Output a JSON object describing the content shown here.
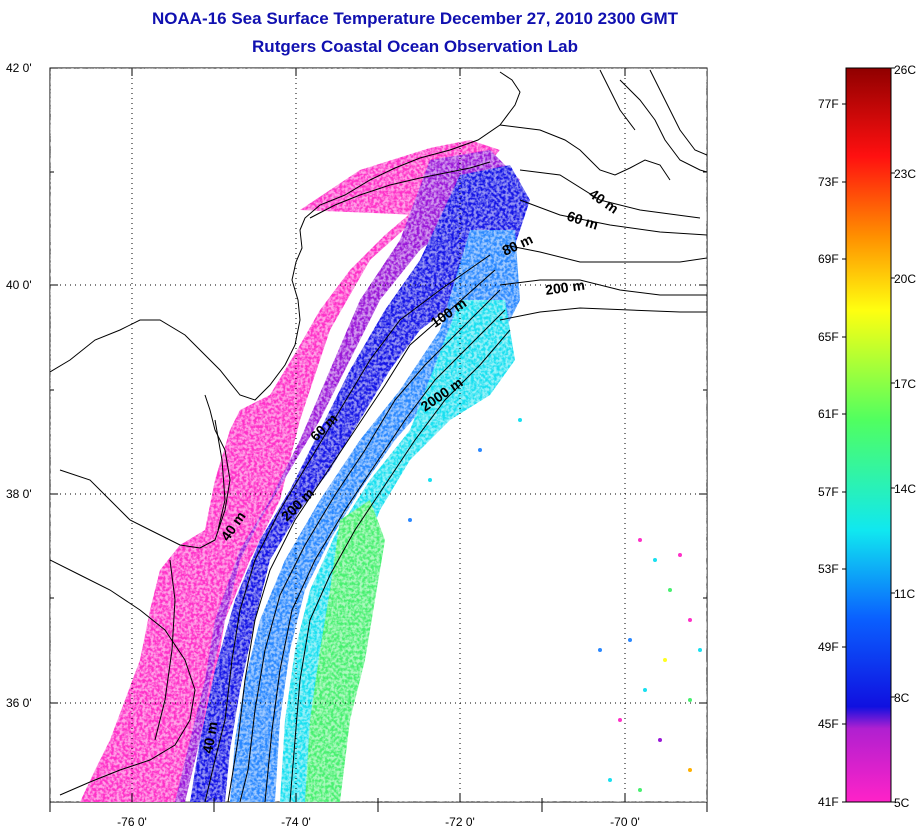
{
  "header": {
    "title_line1": "NOAA-16 Sea Surface Temperature December 27, 2010 2300 GMT",
    "title_line2": "Rutgers Coastal Ocean Observation Lab"
  },
  "map": {
    "lat_ticks": [
      "42 0'",
      "40 0'",
      "38 0'",
      "36 0'"
    ],
    "lon_ticks": [
      "-76 0'",
      "-74 0'",
      "-72 0'",
      "-70 0'"
    ],
    "contour_labels": [
      "40 m",
      "60 m",
      "80 m",
      "200 m",
      "100 m",
      "2000 m",
      "60 m",
      "200 m",
      "40 m",
      "40 m"
    ]
  },
  "colorbar": {
    "celsius_labels": [
      "26C",
      "23C",
      "20C",
      "17C",
      "14C",
      "11C",
      "8C",
      "5C"
    ],
    "fahrenheit_labels": [
      "77F",
      "73F",
      "69F",
      "65F",
      "61F",
      "57F",
      "53F",
      "49F",
      "45F",
      "41F"
    ],
    "colors": [
      "#ff22c8",
      "#b020d0",
      "#1010e0",
      "#0a60ff",
      "#10e8f0",
      "#50ff60",
      "#ffff10",
      "#ff9000",
      "#ff1010",
      "#900000"
    ]
  }
}
